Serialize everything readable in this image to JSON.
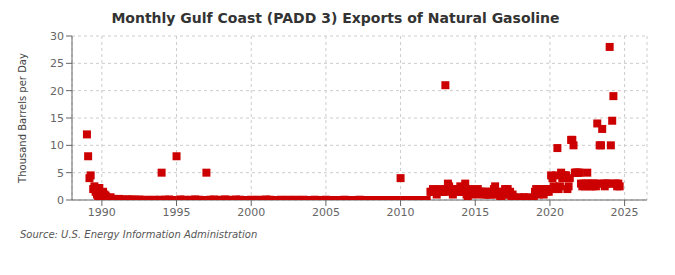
{
  "chart_data": {
    "type": "scatter",
    "title": "Monthly Gulf Coast (PADD 3) Exports of Natural Gasoline",
    "y_label": "Thousand Barrels per Day",
    "annotations": [
      "Source: U.S. Energy Information Administration"
    ],
    "color": "#CC0000",
    "marker": "square",
    "grid": true,
    "xlim": [
      1988.0,
      2026.5
    ],
    "xticks": [
      1990,
      1995,
      2000,
      2005,
      2010,
      2015,
      2020,
      2025
    ],
    "ylim": [
      0,
      30
    ],
    "yticks": [
      0,
      5,
      10,
      15,
      20,
      25,
      30
    ],
    "x": [
      1989.0,
      1989.08,
      1989.17,
      1989.25,
      1989.42,
      1989.5,
      1989.58,
      1989.67,
      1989.75,
      1989.83,
      1989.92,
      1990.0,
      1990.08,
      1990.17,
      1990.25,
      1990.33,
      1990.42,
      1990.5,
      1990.58,
      1990.67,
      1990.75,
      1990.83,
      1990.92,
      1991.0,
      1991.17,
      1991.42,
      1991.58,
      1991.75,
      1991.92,
      1992.0,
      1992.25,
      1992.5,
      1993.0,
      1993.25,
      1993.5,
      1993.75,
      1993.92,
      1994.0,
      1994.25,
      1994.5,
      1994.75,
      1995.0,
      1995.25,
      1995.5,
      1995.75,
      1996.0,
      1996.25,
      1996.5,
      1996.75,
      1997.0,
      1997.25,
      1997.5,
      1997.75,
      1998.0,
      1998.25,
      1998.5,
      1998.75,
      1999.0,
      1999.25,
      1999.5,
      1999.75,
      2000.0,
      2000.25,
      2000.5,
      2000.75,
      2001.0,
      2001.25,
      2001.5,
      2001.75,
      2002.0,
      2002.25,
      2002.5,
      2002.75,
      2003.0,
      2003.25,
      2003.5,
      2003.75,
      2004.0,
      2004.25,
      2004.5,
      2004.75,
      2005.0,
      2005.25,
      2005.5,
      2005.75,
      2006.0,
      2006.25,
      2006.5,
      2006.75,
      2007.0,
      2007.25,
      2007.5,
      2007.75,
      2008.0,
      2008.25,
      2008.5,
      2008.75,
      2009.0,
      2009.25,
      2009.5,
      2009.75,
      2010.0,
      2010.25,
      2010.5,
      2010.75,
      2011.0,
      2011.25,
      2011.5,
      2011.75,
      2012.0,
      2012.08,
      2012.17,
      2012.25,
      2012.33,
      2012.42,
      2012.5,
      2012.58,
      2012.67,
      2012.75,
      2012.83,
      2012.92,
      2013.0,
      2013.08,
      2013.17,
      2013.25,
      2013.33,
      2013.42,
      2013.5,
      2013.58,
      2013.67,
      2013.75,
      2013.83,
      2013.92,
      2014.0,
      2014.08,
      2014.17,
      2014.25,
      2014.33,
      2014.42,
      2014.5,
      2014.58,
      2014.67,
      2014.75,
      2014.83,
      2014.92,
      2015.0,
      2015.08,
      2015.17,
      2015.25,
      2015.33,
      2015.42,
      2015.5,
      2015.58,
      2015.67,
      2015.75,
      2015.83,
      2015.92,
      2016.0,
      2016.08,
      2016.17,
      2016.25,
      2016.33,
      2016.42,
      2016.5,
      2016.58,
      2016.67,
      2016.75,
      2016.83,
      2016.92,
      2017.0,
      2017.08,
      2017.17,
      2017.25,
      2017.33,
      2017.42,
      2017.5,
      2017.58,
      2017.67,
      2017.75,
      2017.83,
      2017.92,
      2018.0,
      2018.08,
      2018.17,
      2018.25,
      2018.33,
      2018.42,
      2018.5,
      2018.58,
      2018.67,
      2018.75,
      2018.83,
      2018.92,
      2019.0,
      2019.08,
      2019.17,
      2019.25,
      2019.33,
      2019.42,
      2019.5,
      2019.58,
      2019.67,
      2019.75,
      2019.83,
      2019.92,
      2020.0,
      2020.08,
      2020.17,
      2020.25,
      2020.33,
      2020.42,
      2020.5,
      2020.58,
      2020.67,
      2020.75,
      2020.83,
      2020.92,
      2021.0,
      2021.08,
      2021.17,
      2021.25,
      2021.33,
      2021.42,
      2021.5,
      2021.58,
      2021.67,
      2021.75,
      2021.83,
      2021.92,
      2022.0,
      2022.08,
      2022.17,
      2022.25,
      2022.33,
      2022.42,
      2022.5,
      2022.58,
      2022.67,
      2022.75,
      2022.83,
      2022.92,
      2023.0,
      2023.08,
      2023.17,
      2023.25,
      2023.33,
      2023.42,
      2023.5,
      2023.58,
      2023.67,
      2023.75,
      2023.83,
      2023.92,
      2024.0,
      2024.08,
      2024.17,
      2024.25,
      2024.33,
      2024.42,
      2024.5,
      2024.58,
      2024.67
    ],
    "values": [
      12.0,
      8.0,
      4.0,
      4.5,
      2.0,
      2.5,
      1.5,
      1.0,
      0.5,
      2.2,
      1.0,
      0.5,
      1.5,
      1.0,
      0.8,
      0.5,
      0.3,
      0.2,
      0.5,
      0.1,
      0.2,
      0.1,
      0.05,
      0.1,
      0.2,
      0.1,
      0.05,
      0.1,
      0.05,
      0.1,
      0.05,
      0.1,
      0.05,
      0.0,
      0.05,
      0.0,
      0.05,
      5.0,
      0.05,
      0.1,
      0.0,
      8.0,
      0.1,
      0.05,
      0.0,
      0.05,
      0.1,
      0.05,
      0.0,
      5.0,
      0.05,
      0.1,
      0.0,
      0.05,
      0.1,
      0.05,
      0.0,
      0.1,
      0.05,
      0.0,
      0.0,
      0.05,
      0.0,
      0.05,
      0.0,
      0.1,
      0.05,
      0.0,
      0.0,
      0.05,
      0.0,
      0.05,
      0.0,
      0.05,
      0.0,
      0.05,
      0.0,
      0.0,
      0.05,
      0.0,
      0.0,
      0.05,
      0.0,
      0.0,
      0.0,
      0.0,
      0.05,
      0.0,
      0.0,
      0.0,
      0.05,
      0.0,
      0.0,
      0.0,
      0.0,
      0.0,
      0.0,
      0.0,
      0.0,
      0.0,
      0.0,
      4.0,
      0.0,
      0.0,
      0.0,
      0.0,
      0.0,
      0.0,
      0.0,
      1.5,
      1.5,
      2.0,
      1.5,
      1.5,
      1.0,
      1.5,
      2.0,
      1.5,
      1.5,
      1.5,
      1.5,
      21.0,
      2.0,
      3.0,
      2.5,
      2.0,
      1.5,
      1.0,
      2.0,
      1.5,
      2.0,
      1.5,
      2.0,
      2.5,
      1.5,
      2.0,
      1.5,
      3.0,
      1.0,
      0.5,
      1.0,
      2.0,
      1.5,
      1.5,
      1.5,
      1.5,
      1.0,
      2.0,
      1.5,
      1.5,
      1.5,
      1.5,
      1.0,
      1.5,
      1.0,
      1.5,
      1.0,
      1.5,
      1.0,
      1.5,
      2.0,
      2.5,
      1.0,
      1.5,
      1.5,
      0.5,
      0.5,
      1.0,
      1.0,
      2.0,
      1.5,
      2.0,
      1.0,
      1.5,
      0.5,
      1.0,
      0.5,
      0.3,
      0.0,
      0.3,
      0.2,
      0.5,
      0.0,
      0.3,
      0.5,
      0.0,
      0.3,
      0.0,
      0.5,
      0.3,
      0.0,
      0.2,
      0.0,
      1.5,
      2.0,
      2.0,
      1.0,
      1.5,
      2.0,
      1.5,
      1.0,
      1.5,
      1.5,
      2.0,
      1.5,
      2.0,
      4.5,
      4.0,
      2.5,
      2.0,
      4.5,
      9.5,
      2.0,
      2.5,
      5.0,
      4.0,
      4.5,
      4.5,
      4.5,
      2.0,
      2.5,
      4.0,
      11.0,
      11.0,
      10.0,
      5.0,
      5.0,
      5.0,
      5.0,
      5.0,
      3.0,
      2.5,
      3.0,
      2.5,
      3.0,
      5.0,
      3.0,
      2.5,
      3.0,
      2.5,
      3.0,
      3.0,
      2.5,
      14.0,
      3.0,
      10.0,
      10.0,
      13.0,
      3.0,
      2.5,
      3.0,
      3.0,
      3.0,
      28.0,
      10.0,
      14.5,
      19.0,
      3.0,
      3.0,
      2.5,
      3.0,
      2.5
    ]
  }
}
